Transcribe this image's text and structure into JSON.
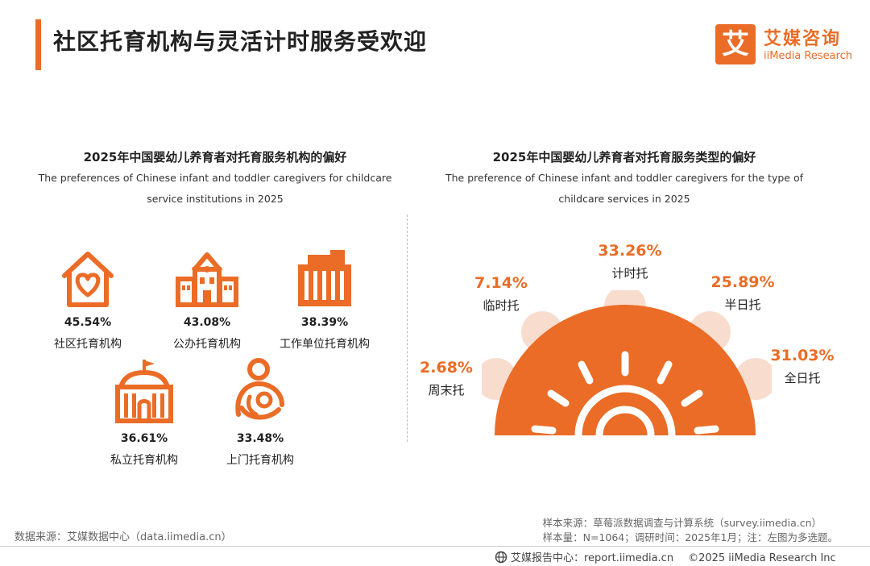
{
  "page": {
    "title": "社区托育机构与灵活计时服务受欢迎",
    "logo": {
      "mark": "艾",
      "name_cn": "艾媒咨询",
      "name_en": "iiMedia Research"
    }
  },
  "left_panel": {
    "title": "2025年中国婴幼儿养育者对托育服务机构的偏好",
    "subtitle_line1": "The preferences of Chinese infant and toddler caregivers for childcare",
    "subtitle_line2": "service institutions in 2025"
  },
  "right_panel": {
    "title": "2025年中国婴幼儿养育者对托育服务类型的偏好",
    "subtitle_line1": "The preference of Chinese infant and toddler caregivers for the type of",
    "subtitle_line2": "childcare services in 2025"
  },
  "chart_data": [
    {
      "type": "table",
      "categories": [
        "社区托育机构",
        "公办托育机构",
        "工作单位托育机构",
        "私立托育机构",
        "上门托育机构"
      ],
      "values": [
        45.54,
        43.08,
        38.39,
        36.61,
        33.48
      ],
      "value_labels": [
        "45.54%",
        "43.08%",
        "38.39%",
        "36.61%",
        "33.48%"
      ],
      "icons": [
        "house-heart-icon",
        "school-icon",
        "office-building-icon",
        "private-building-icon",
        "caregiver-baby-icon"
      ]
    },
    {
      "type": "table",
      "categories": [
        "周末托",
        "临时托",
        "计时托",
        "半日托",
        "全日托"
      ],
      "values": [
        2.68,
        7.14,
        33.26,
        25.89,
        31.03
      ],
      "value_labels": [
        "2.68%",
        "7.14%",
        "33.26%",
        "25.89%",
        "31.03%"
      ]
    }
  ],
  "footer": {
    "source_left": "数据来源：艾媒数据中心（data.iimedia.cn）",
    "note_line1": "样本来源：草莓派数据调查与计算系统（survey.iimedia.cn）",
    "note_line2": "样本量：N=1064；调研时间：2025年1月；注：左图为多选题。",
    "report_center": "艾媒报告中心：report.iimedia.cn",
    "copyright": "©2025  iiMedia Research  Inc"
  },
  "colors": {
    "accent": "#ea6c26",
    "light_accent": "#f8ddcf",
    "text": "#222222"
  }
}
